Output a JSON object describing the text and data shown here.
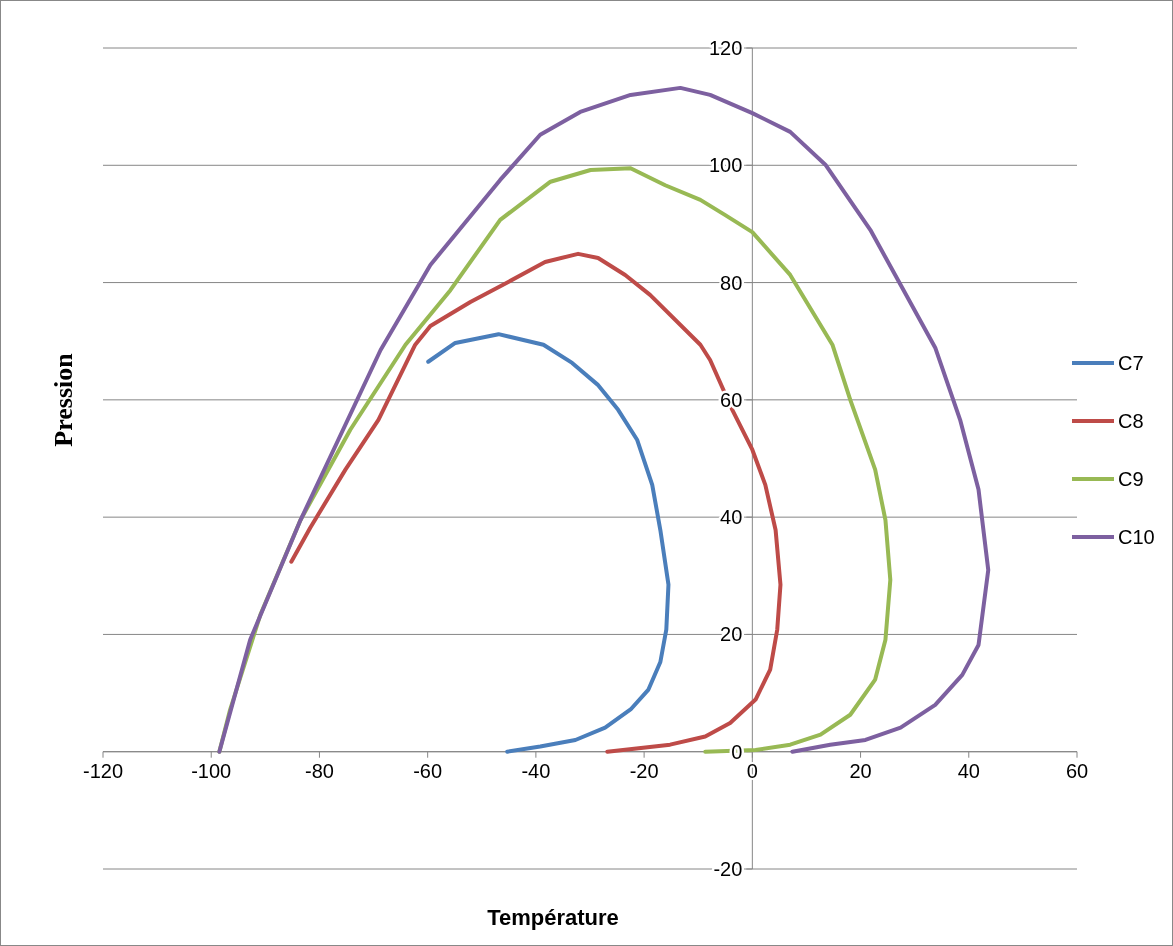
{
  "chart_data": {
    "type": "line",
    "xlabel": "Température",
    "ylabel": "Pression",
    "xlim": [
      -120,
      60
    ],
    "ylim": [
      -20,
      120
    ],
    "xticks": [
      -120,
      -100,
      -80,
      -60,
      -40,
      -20,
      0,
      20,
      40,
      60
    ],
    "yticks": [
      -20,
      0,
      20,
      40,
      60,
      80,
      100,
      120
    ],
    "grid": "y",
    "legend": "right",
    "line_style": "solid",
    "series": [
      {
        "name": "C7",
        "color": "#4a7ebb",
        "x": [
          -59.9,
          -54.9,
          -46.9,
          -38.6,
          -33.3,
          -28.6,
          -24.8,
          -21.3,
          -18.5,
          -17.0,
          -15.5,
          -15.9,
          -17.0,
          -19.2,
          -22.5,
          -27.2,
          -32.7,
          -39.2,
          -45.3
        ],
        "values": [
          66.5,
          69.7,
          71.2,
          69.4,
          66.3,
          62.6,
          58.3,
          53.2,
          45.5,
          37.8,
          28.5,
          20.8,
          15.3,
          10.6,
          7.2,
          4.1,
          2.0,
          0.9,
          0
        ]
      },
      {
        "name": "C8",
        "color": "#be4b48",
        "x": [
          -85.2,
          -81.7,
          -75.2,
          -69.1,
          -62.3,
          -59.5,
          -52.1,
          -45.1,
          -38.3,
          -32.2,
          -28.5,
          -23.5,
          -18.9,
          -9.6,
          -7.8,
          -3.7,
          0,
          2.4,
          4.3,
          5.2,
          4.6,
          3.3,
          0.6,
          -4.1,
          -8.7,
          -15.2,
          -26.8
        ],
        "values": [
          32.4,
          38.2,
          48.1,
          56.6,
          69.4,
          72.6,
          76.7,
          80.1,
          83.5,
          84.9,
          84.2,
          81.3,
          77.9,
          69.4,
          66.8,
          58.3,
          51.5,
          45.5,
          37.8,
          28.5,
          20.8,
          14.0,
          8.9,
          4.9,
          2.6,
          1.2,
          0
        ]
      },
      {
        "name": "C9",
        "color": "#98b954",
        "x": [
          -98.5,
          -96.5,
          -90.9,
          -83.5,
          -74.3,
          -64.1,
          -55.8,
          -46.6,
          -37.3,
          -29.9,
          -22.5,
          -16.1,
          -9.6,
          -5.0,
          0,
          7.0,
          14.8,
          18.1,
          22.7,
          24.6,
          25.5,
          24.6,
          22.7,
          18.1,
          12.6,
          7.0,
          0.6,
          -8.7
        ],
        "values": [
          0,
          7.2,
          23.4,
          39.5,
          54.9,
          69.4,
          78.7,
          90.7,
          97.2,
          99.2,
          99.5,
          96.6,
          94.1,
          91.5,
          88.6,
          81.3,
          69.4,
          60.0,
          48.1,
          39.5,
          29.3,
          19.1,
          12.3,
          6.3,
          2.9,
          1.2,
          0.3,
          0
        ]
      },
      {
        "name": "C10",
        "color": "#7d60a0",
        "x": [
          -98.5,
          -92.8,
          -83.5,
          -68.7,
          -59.5,
          -46.6,
          -39.2,
          -31.8,
          -22.5,
          -13.3,
          -7.8,
          0,
          7.0,
          13.5,
          21.8,
          33.8,
          38.4,
          41.8,
          43.6,
          41.8,
          38.8,
          33.8,
          27.4,
          20.9,
          14.4,
          7.4
        ],
        "values": [
          0,
          19.1,
          39.5,
          68.5,
          83.0,
          97.5,
          105.2,
          109.1,
          112.0,
          113.2,
          112.0,
          108.9,
          105.7,
          100.1,
          89.0,
          68.9,
          56.6,
          44.7,
          31.0,
          18.2,
          13.1,
          8.0,
          4.1,
          2.0,
          1.2,
          0
        ]
      }
    ]
  }
}
